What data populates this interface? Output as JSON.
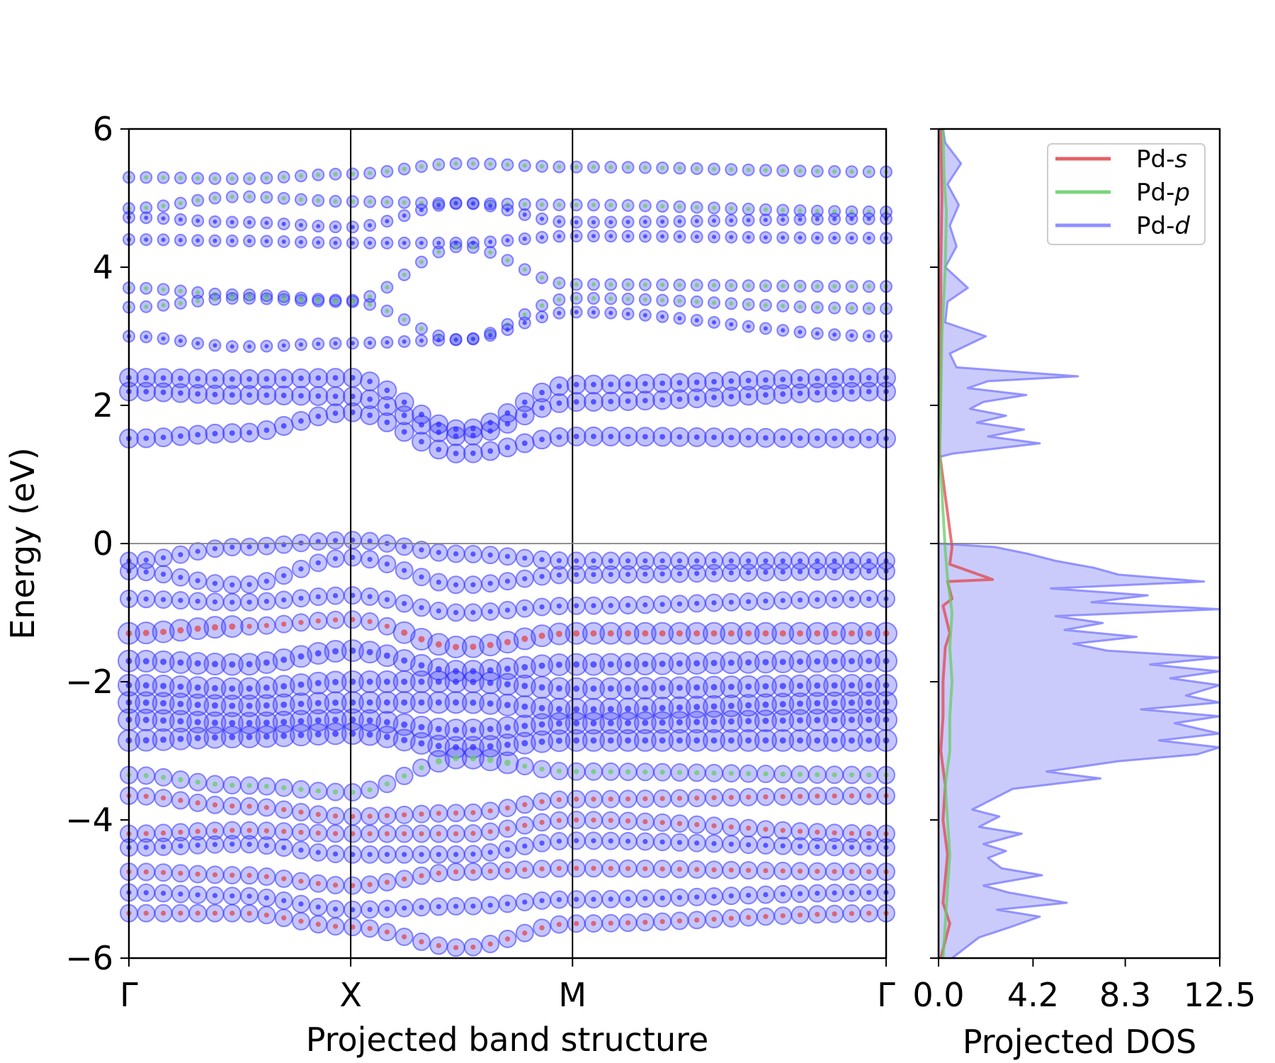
{
  "chart_data": [
    {
      "type": "scatter",
      "name": "band-structure",
      "xlabel": "Projected band structure",
      "ylabel": "Energy (eV)",
      "ylim": [
        -6,
        6
      ],
      "yticks": [
        6,
        4,
        2,
        0,
        -2,
        -4,
        -6
      ],
      "ytick_labels": [
        "6",
        "4",
        "2",
        "0",
        "−2",
        "−4",
        "−6"
      ],
      "kpath_labels": [
        "Γ",
        "X",
        "M",
        "Γ"
      ],
      "kpath_positions": [
        0,
        1,
        2,
        3.414
      ],
      "fermi_level": 0,
      "grid": false,
      "colors": {
        "s": "#e0454b",
        "p": "#66cc66",
        "d": "#3030ff"
      },
      "bands": [
        {
          "E": [
            5.3,
            5.28,
            5.35,
            5.5,
            5.45,
            5.38
          ],
          "weight": "p"
        },
        {
          "E": [
            4.85,
            5.02,
            4.95,
            4.92,
            4.9,
            4.8
          ],
          "weight": "p"
        },
        {
          "E": [
            4.72,
            4.65,
            4.58,
            4.93,
            4.65,
            4.7
          ],
          "weight": "d"
        },
        {
          "E": [
            4.4,
            4.38,
            4.35,
            4.35,
            4.45,
            4.42
          ],
          "weight": "d"
        },
        {
          "E": [
            3.7,
            3.6,
            3.52,
            4.3,
            3.75,
            3.72
          ],
          "weight": "p"
        },
        {
          "E": [
            3.42,
            3.55,
            3.5,
            2.95,
            3.55,
            3.4
          ],
          "weight": "p"
        },
        {
          "E": [
            3.0,
            2.85,
            2.9,
            2.95,
            3.35,
            3.0
          ],
          "weight": "d"
        },
        {
          "E": [
            2.4,
            2.38,
            2.4,
            1.65,
            2.3,
            2.4
          ],
          "weight": "d"
        },
        {
          "E": [
            2.2,
            2.15,
            2.13,
            1.55,
            2.05,
            2.2
          ],
          "weight": "d"
        },
        {
          "E": [
            1.52,
            1.6,
            1.9,
            1.3,
            1.55,
            1.52
          ],
          "weight": "d"
        },
        {
          "E": [
            -0.25,
            -0.05,
            0.05,
            -0.15,
            -0.25,
            -0.25
          ],
          "weight": "d"
        },
        {
          "E": [
            -0.4,
            -0.6,
            -0.2,
            -0.6,
            -0.45,
            -0.4
          ],
          "weight": "d"
        },
        {
          "E": [
            -0.8,
            -0.85,
            -0.75,
            -1.0,
            -0.9,
            -0.8
          ],
          "weight": "d"
        },
        {
          "E": [
            -1.3,
            -1.2,
            -1.1,
            -1.5,
            -1.3,
            -1.3
          ],
          "weight": "s"
        },
        {
          "E": [
            -1.7,
            -1.75,
            -1.55,
            -1.85,
            -1.75,
            -1.7
          ],
          "weight": "d"
        },
        {
          "E": [
            -2.05,
            -2.1,
            -2.0,
            -2.0,
            -2.1,
            -2.05
          ],
          "weight": "d"
        },
        {
          "E": [
            -2.3,
            -2.35,
            -2.3,
            -2.3,
            -2.4,
            -2.3
          ],
          "weight": "d"
        },
        {
          "E": [
            -2.55,
            -2.6,
            -2.55,
            -2.7,
            -2.6,
            -2.55
          ],
          "weight": "d"
        },
        {
          "E": [
            -2.85,
            -2.8,
            -2.75,
            -2.95,
            -2.85,
            -2.85
          ],
          "weight": "d"
        },
        {
          "E": [
            -3.35,
            -3.5,
            -3.6,
            -3.1,
            -3.3,
            -3.35
          ],
          "weight": "p"
        },
        {
          "E": [
            -3.65,
            -3.8,
            -3.95,
            -3.9,
            -3.7,
            -3.65
          ],
          "weight": "s"
        },
        {
          "E": [
            -4.2,
            -4.15,
            -4.2,
            -4.2,
            -4.0,
            -4.2
          ],
          "weight": "s"
        },
        {
          "E": [
            -4.4,
            -4.35,
            -4.5,
            -4.5,
            -4.3,
            -4.4
          ],
          "weight": "d"
        },
        {
          "E": [
            -4.75,
            -4.8,
            -4.95,
            -4.75,
            -4.7,
            -4.75
          ],
          "weight": "s"
        },
        {
          "E": [
            -5.05,
            -5.1,
            -5.3,
            -5.25,
            -5.15,
            -5.05
          ],
          "weight": "d"
        },
        {
          "E": [
            -5.35,
            -5.35,
            -5.55,
            -5.85,
            -5.5,
            -5.35
          ],
          "weight": "s"
        }
      ]
    },
    {
      "type": "line",
      "name": "projected-dos",
      "xlabel": "Projected DOS",
      "xlim": [
        0.0,
        12.5
      ],
      "xticks": [
        0.0,
        4.2,
        8.3,
        12.5
      ],
      "xtick_labels": [
        "0.0",
        "4.2",
        "8.3",
        "12.5"
      ],
      "ylim": [
        -6,
        6
      ],
      "fermi_level": 0,
      "legend_position": "upper right",
      "legend": [
        {
          "prefix": "Pd-",
          "orbital": "s",
          "color": "#e0454b"
        },
        {
          "prefix": "Pd-",
          "orbital": "p",
          "color": "#66cc66"
        },
        {
          "prefix": "Pd-",
          "orbital": "d",
          "color": "#7d7dff"
        }
      ],
      "series": [
        {
          "orbital": "d",
          "fill": "#c8c8fb",
          "E": [
            -6.0,
            -5.9,
            -5.7,
            -5.55,
            -5.4,
            -5.3,
            -5.2,
            -5.05,
            -4.95,
            -4.8,
            -4.7,
            -4.55,
            -4.45,
            -4.35,
            -4.2,
            -4.1,
            -3.95,
            -3.85,
            -3.7,
            -3.55,
            -3.4,
            -3.3,
            -3.15,
            -3.05,
            -2.95,
            -2.85,
            -2.75,
            -2.6,
            -2.5,
            -2.4,
            -2.3,
            -2.2,
            -2.05,
            -1.95,
            -1.85,
            -1.75,
            -1.65,
            -1.55,
            -1.45,
            -1.35,
            -1.25,
            -1.15,
            -1.05,
            -0.95,
            -0.85,
            -0.75,
            -0.65,
            -0.55,
            -0.45,
            -0.35,
            -0.25,
            -0.15,
            -0.05,
            0.0
          ],
          "DOS": [
            0.6,
            1.0,
            1.8,
            3.2,
            4.5,
            2.6,
            5.7,
            3.1,
            2.0,
            4.6,
            2.8,
            2.2,
            3.0,
            2.0,
            3.7,
            1.8,
            2.7,
            1.5,
            2.4,
            3.3,
            7.2,
            4.8,
            8.0,
            11.5,
            12.5,
            9.8,
            12.5,
            10.5,
            12.5,
            9.0,
            12.5,
            11.0,
            12.5,
            10.3,
            12.5,
            9.4,
            12.5,
            7.5,
            6.0,
            8.8,
            5.6,
            7.3,
            5.2,
            12.5,
            6.8,
            9.3,
            5.0,
            11.8,
            8.0,
            6.9,
            5.2,
            4.0,
            2.5,
            0.0
          ]
        },
        {
          "orbital": "d",
          "fill": "#c8c8fb",
          "E": [
            1.25,
            1.3,
            1.45,
            1.55,
            1.65,
            1.75,
            1.85,
            1.95,
            2.05,
            2.15,
            2.25,
            2.35,
            2.42,
            2.55,
            2.75,
            3.0,
            3.2,
            3.5,
            3.7,
            4.0,
            4.3,
            4.6,
            4.9,
            5.2,
            5.5,
            5.8,
            6.0
          ],
          "DOS": [
            0.0,
            0.6,
            4.5,
            2.2,
            3.8,
            1.7,
            3.0,
            1.4,
            2.0,
            3.9,
            1.3,
            2.2,
            6.2,
            0.8,
            0.5,
            2.1,
            0.3,
            0.4,
            1.3,
            0.3,
            0.8,
            0.5,
            0.9,
            0.4,
            1.0,
            0.3,
            0.2
          ]
        },
        {
          "orbital": "s",
          "E": [
            -6.0,
            -5.5,
            -5.2,
            -4.5,
            -4.0,
            -3.5,
            -3.0,
            -2.5,
            -2.0,
            -1.5,
            -1.3,
            -0.9,
            -0.8,
            -0.55,
            -0.52,
            -0.3,
            -0.05,
            1.3,
            2.0,
            3.0,
            4.0,
            5.0,
            6.0
          ],
          "DOS": [
            0.1,
            0.5,
            0.2,
            0.4,
            0.2,
            0.3,
            0.1,
            0.2,
            0.2,
            0.3,
            0.5,
            0.2,
            0.6,
            0.4,
            2.4,
            0.5,
            0.6,
            0.05,
            0.05,
            0.1,
            0.1,
            0.15,
            0.1
          ]
        },
        {
          "orbital": "p",
          "E": [
            -6.0,
            -5.5,
            -5.0,
            -4.5,
            -4.0,
            -3.5,
            -3.0,
            -2.5,
            -2.0,
            -1.5,
            -1.0,
            -0.5,
            -0.1,
            1.3,
            2.0,
            3.0,
            4.0,
            4.8,
            5.3,
            6.0
          ],
          "DOS": [
            0.2,
            0.3,
            0.4,
            0.5,
            0.4,
            0.3,
            0.5,
            0.5,
            0.6,
            0.5,
            0.6,
            0.4,
            0.3,
            0.05,
            0.1,
            0.15,
            0.3,
            0.35,
            0.25,
            0.2
          ]
        }
      ]
    }
  ]
}
